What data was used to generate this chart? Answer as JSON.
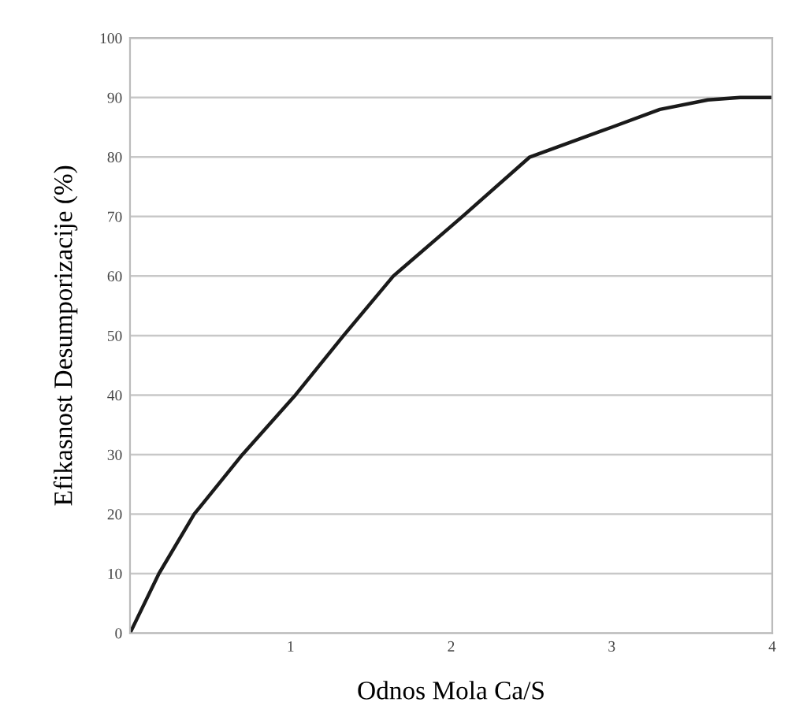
{
  "chart_data": {
    "type": "line",
    "xlabel": "Odnos Mola Ca/S",
    "ylabel": "Efikasnost Desumporizacije (%)",
    "series": [
      {
        "color": "#1a1a1a",
        "x": [
          0,
          0.18,
          0.4,
          0.7,
          1.03,
          1.33,
          1.64,
          2.07,
          2.49,
          3.0,
          3.3,
          3.6,
          3.8,
          4.0
        ],
        "values": [
          0,
          10,
          20,
          30,
          40,
          50,
          60,
          70,
          80,
          85,
          88,
          89.6,
          90,
          90
        ]
      }
    ],
    "xlim": [
      0,
      4
    ],
    "xticks": [
      {
        "value": 0,
        "label": null
      },
      1,
      2,
      3,
      4
    ],
    "ylim": [
      0,
      100
    ],
    "yticks": [
      0,
      10,
      20,
      30,
      40,
      50,
      60,
      70,
      80,
      90,
      100
    ],
    "grid": "y",
    "marker": "none",
    "line_style": "solid",
    "legend": false
  }
}
